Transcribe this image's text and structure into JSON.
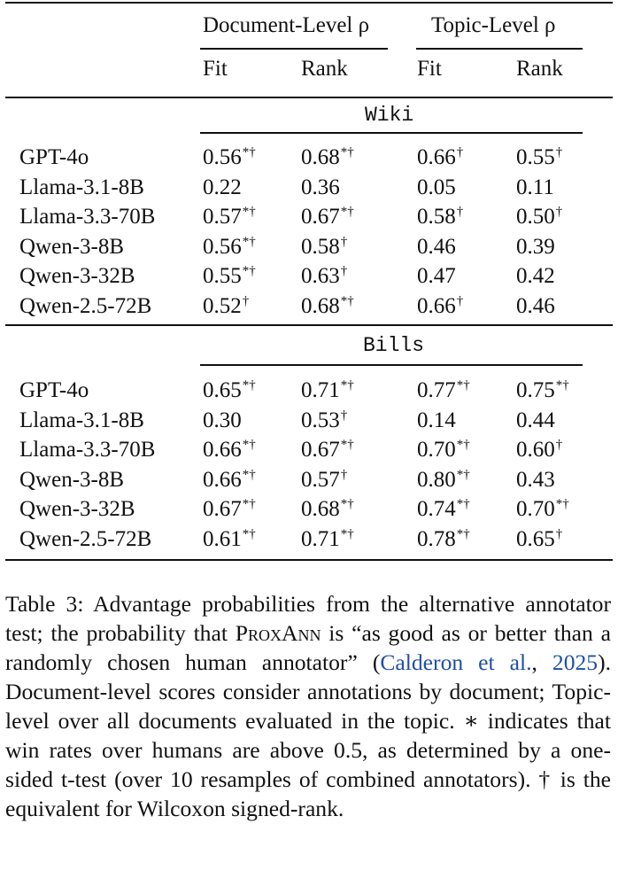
{
  "table": {
    "headers": {
      "doc_level": "Document-Level ρ",
      "topic_level": "Topic-Level ρ",
      "fit": "Fit",
      "rank": "Rank"
    },
    "sections": [
      {
        "name": "Wiki",
        "rows": [
          {
            "model": "GPT-4o",
            "doc_fit": "0.56",
            "doc_fit_mark": "*†",
            "doc_rank": "0.68",
            "doc_rank_mark": "*†",
            "topic_fit": "0.66",
            "topic_fit_mark": "†",
            "topic_rank": "0.55",
            "topic_rank_mark": "†"
          },
          {
            "model": "Llama-3.1-8B",
            "doc_fit": "0.22",
            "doc_fit_mark": "",
            "doc_rank": "0.36",
            "doc_rank_mark": "",
            "topic_fit": "0.05",
            "topic_fit_mark": "",
            "topic_rank": "0.11",
            "topic_rank_mark": ""
          },
          {
            "model": "Llama-3.3-70B",
            "doc_fit": "0.57",
            "doc_fit_mark": "*†",
            "doc_rank": "0.67",
            "doc_rank_mark": "*†",
            "topic_fit": "0.58",
            "topic_fit_mark": "†",
            "topic_rank": "0.50",
            "topic_rank_mark": "†"
          },
          {
            "model": "Qwen-3-8B",
            "doc_fit": "0.56",
            "doc_fit_mark": "*†",
            "doc_rank": "0.58",
            "doc_rank_mark": "†",
            "topic_fit": "0.46",
            "topic_fit_mark": "",
            "topic_rank": "0.39",
            "topic_rank_mark": ""
          },
          {
            "model": "Qwen-3-32B",
            "doc_fit": "0.55",
            "doc_fit_mark": "*†",
            "doc_rank": "0.63",
            "doc_rank_mark": "†",
            "topic_fit": "0.47",
            "topic_fit_mark": "",
            "topic_rank": "0.42",
            "topic_rank_mark": ""
          },
          {
            "model": "Qwen-2.5-72B",
            "doc_fit": "0.52",
            "doc_fit_mark": "†",
            "doc_rank": "0.68",
            "doc_rank_mark": "*†",
            "topic_fit": "0.66",
            "topic_fit_mark": "†",
            "topic_rank": "0.46",
            "topic_rank_mark": ""
          }
        ]
      },
      {
        "name": "Bills",
        "rows": [
          {
            "model": "GPT-4o",
            "doc_fit": "0.65",
            "doc_fit_mark": "*†",
            "doc_rank": "0.71",
            "doc_rank_mark": "*†",
            "topic_fit": "0.77",
            "topic_fit_mark": "*†",
            "topic_rank": "0.75",
            "topic_rank_mark": "*†"
          },
          {
            "model": "Llama-3.1-8B",
            "doc_fit": "0.30",
            "doc_fit_mark": "",
            "doc_rank": "0.53",
            "doc_rank_mark": "†",
            "topic_fit": "0.14",
            "topic_fit_mark": "",
            "topic_rank": "0.44",
            "topic_rank_mark": ""
          },
          {
            "model": "Llama-3.3-70B",
            "doc_fit": "0.66",
            "doc_fit_mark": "*†",
            "doc_rank": "0.67",
            "doc_rank_mark": "*†",
            "topic_fit": "0.70",
            "topic_fit_mark": "*†",
            "topic_rank": "0.60",
            "topic_rank_mark": "†"
          },
          {
            "model": "Qwen-3-8B",
            "doc_fit": "0.66",
            "doc_fit_mark": "*†",
            "doc_rank": "0.57",
            "doc_rank_mark": "†",
            "topic_fit": "0.80",
            "topic_fit_mark": "*†",
            "topic_rank": "0.43",
            "topic_rank_mark": ""
          },
          {
            "model": "Qwen-3-32B",
            "doc_fit": "0.67",
            "doc_fit_mark": "*†",
            "doc_rank": "0.68",
            "doc_rank_mark": "*†",
            "topic_fit": "0.74",
            "topic_fit_mark": "*†",
            "topic_rank": "0.70",
            "topic_rank_mark": "*†"
          },
          {
            "model": "Qwen-2.5-72B",
            "doc_fit": "0.61",
            "doc_fit_mark": "*†",
            "doc_rank": "0.71",
            "doc_rank_mark": "*†",
            "topic_fit": "0.78",
            "topic_fit_mark": "*†",
            "topic_rank": "0.65",
            "topic_rank_mark": "†"
          }
        ]
      }
    ]
  },
  "caption": {
    "label": "Table 3:",
    "part1": "Advantage probabilities from the alternative annotator test; the probability that",
    "proxann": "ProxAnn",
    "part2": "is “as good as or better than a randomly chosen human annotator” (",
    "cite_author": "Calderon et al.",
    "cite_sep": ", ",
    "cite_year": "2025",
    "part3": "). Document-level scores consider annotations by document; Topic-level over all documents evaluated in the topic. ∗ indicates that win rates over humans are above 0.5, as determined by a one-sided t-test (over 10 resamples of combined annotators). † is the equivalent for Wilcoxon signed-rank."
  }
}
